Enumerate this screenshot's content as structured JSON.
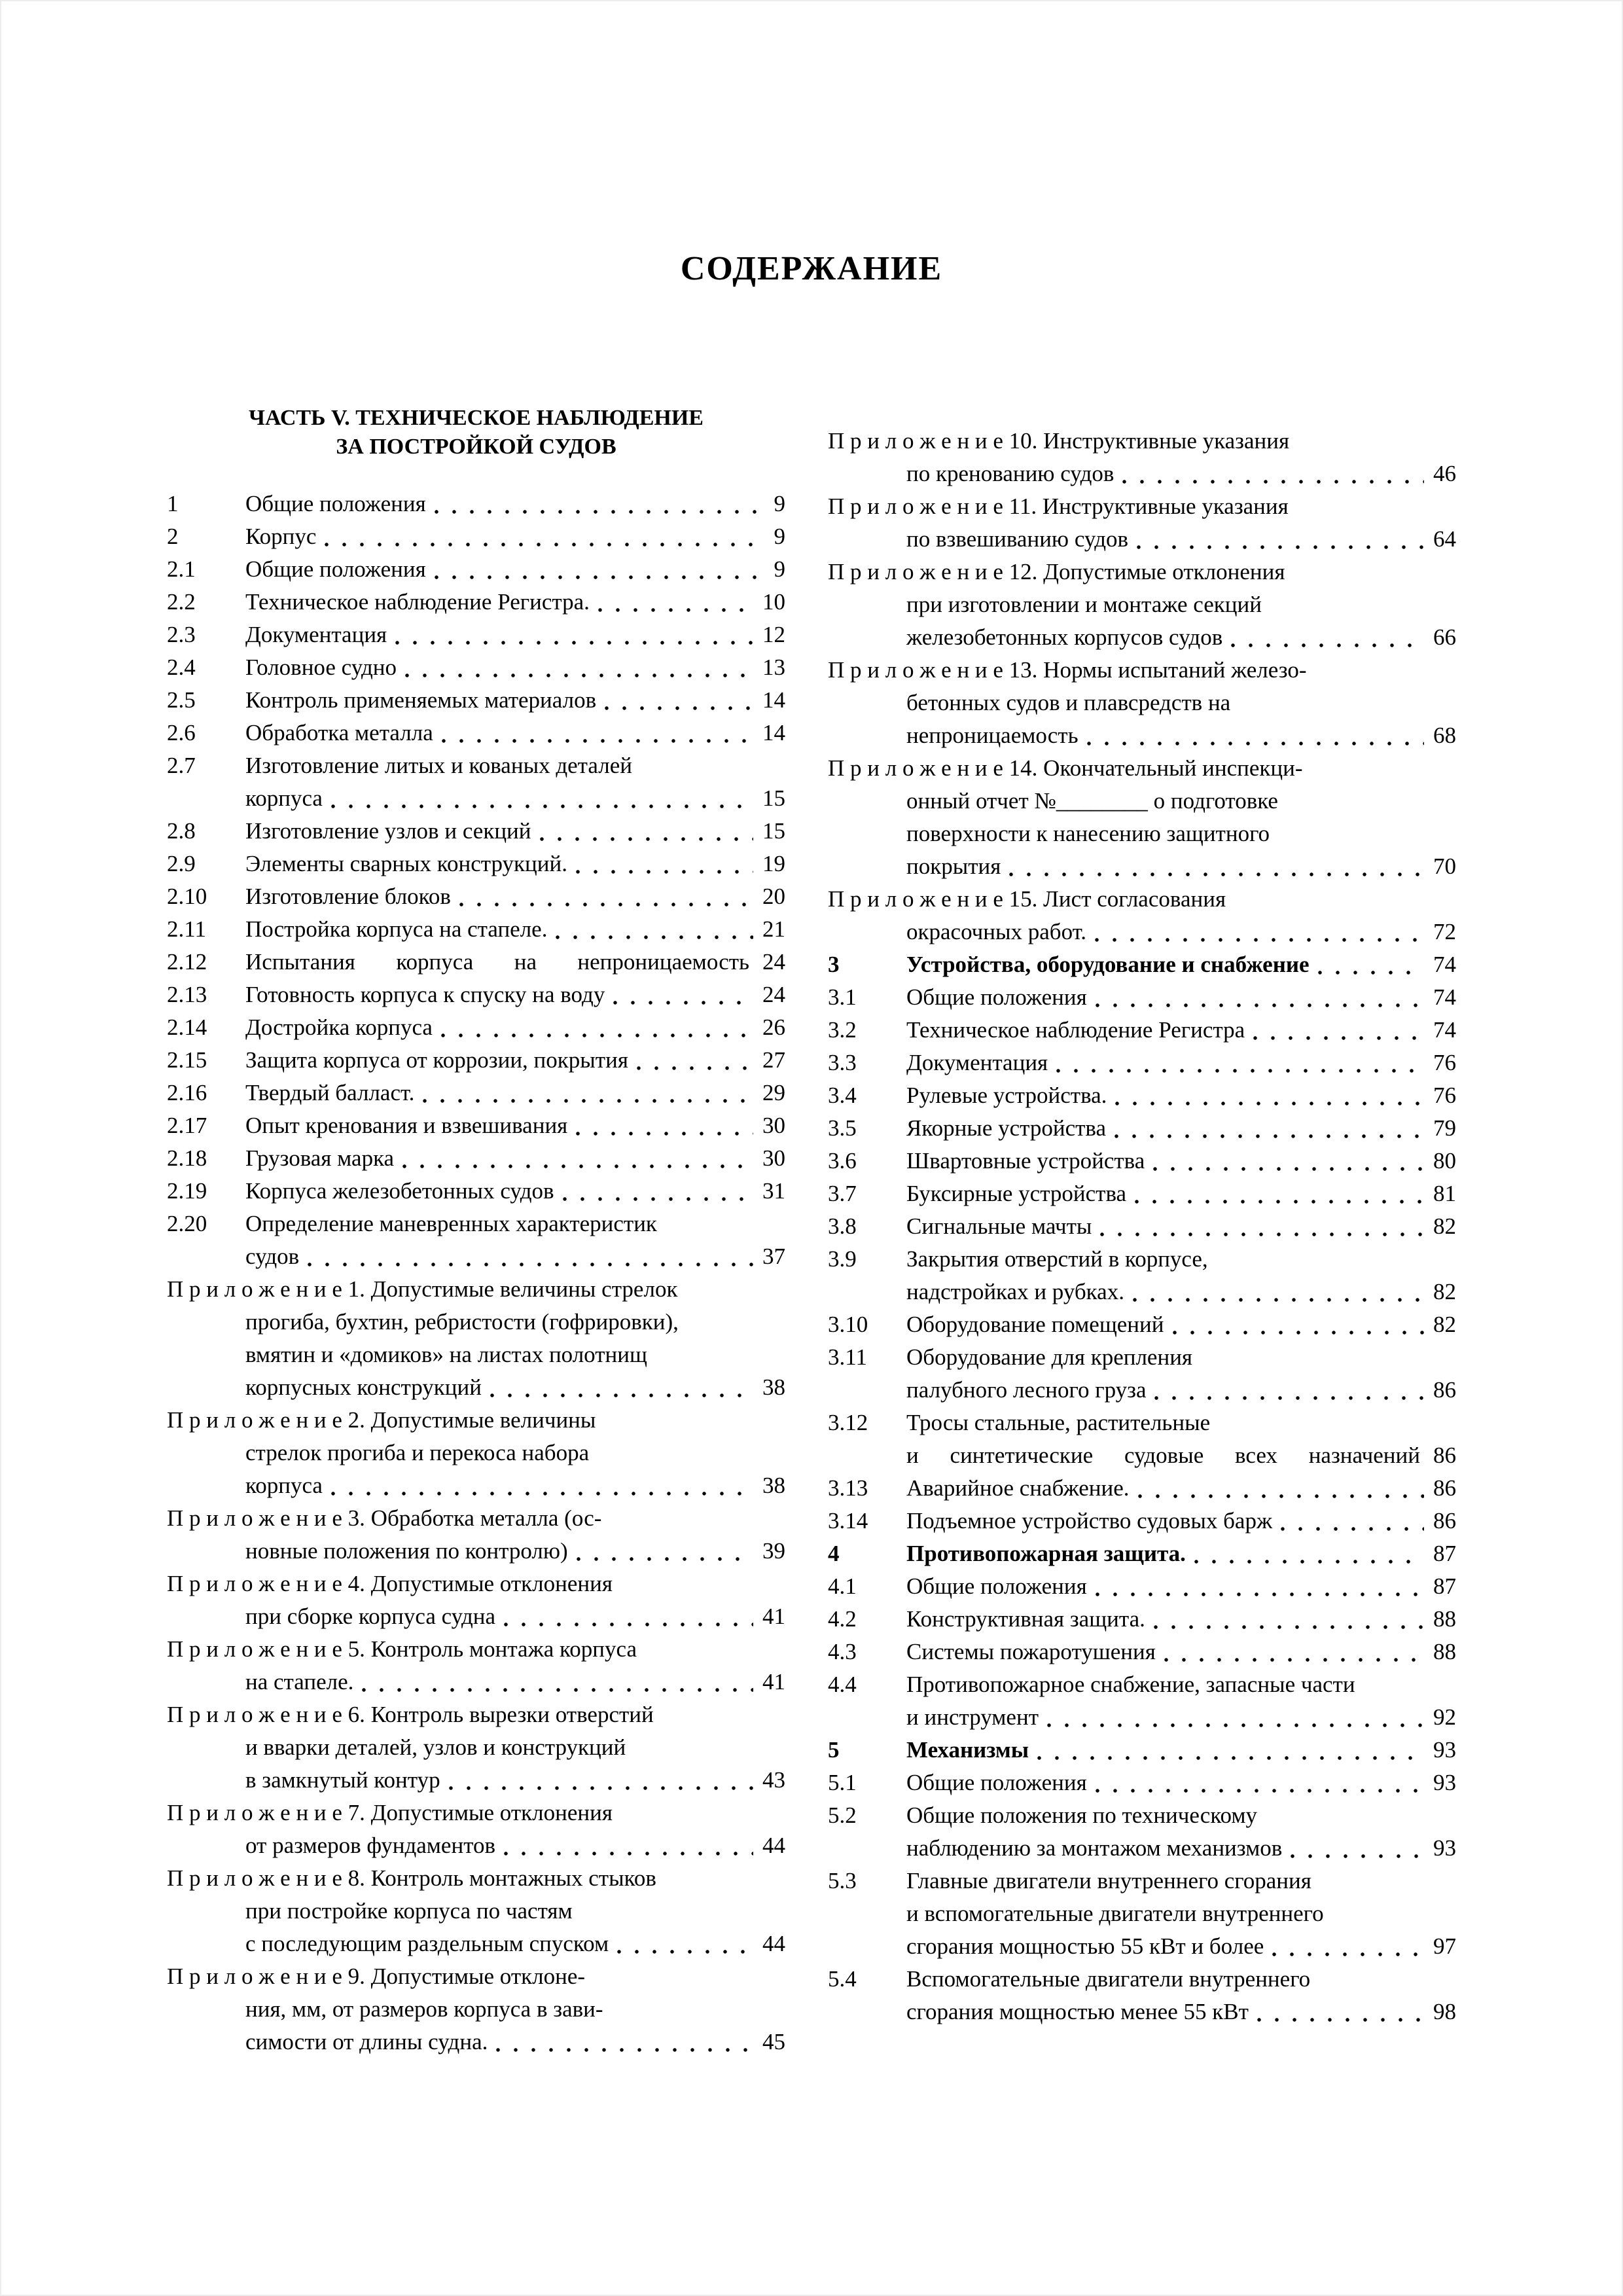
{
  "page_title": "СОДЕРЖАНИЕ",
  "left_column": {
    "header": {
      "line1": "ЧАСТЬ V. ТЕХНИЧЕСКОЕ НАБЛЮДЕНИЕ",
      "line2": "ЗА ПОСТРОЙКОЙ СУДОВ"
    },
    "entries": [
      {
        "num": "1",
        "lines": [
          "Общие положения"
        ],
        "page": "9"
      },
      {
        "num": "2",
        "lines": [
          "Корпус"
        ],
        "page": "9"
      },
      {
        "num": "2.1",
        "lines": [
          "Общие положения"
        ],
        "page": "9"
      },
      {
        "num": "2.2",
        "lines": [
          "Техническое наблюдение Регистра."
        ],
        "page": "10"
      },
      {
        "num": "2.3",
        "lines": [
          "Документация"
        ],
        "page": "12"
      },
      {
        "num": "2.4",
        "lines": [
          "Головное судно"
        ],
        "page": "13"
      },
      {
        "num": "2.5",
        "lines": [
          "Контроль применяемых материалов"
        ],
        "page": "14"
      },
      {
        "num": "2.6",
        "lines": [
          "Обработка металла"
        ],
        "page": "14"
      },
      {
        "num": "2.7",
        "lines": [
          "Изготовление литых и кованых деталей",
          "корпуса"
        ],
        "page": "15"
      },
      {
        "num": "2.8",
        "lines": [
          "Изготовление узлов и секций"
        ],
        "page": "15"
      },
      {
        "num": "2.9",
        "lines": [
          "Элементы сварных конструкций."
        ],
        "page": "19"
      },
      {
        "num": "2.10",
        "lines": [
          "Изготовление блоков"
        ],
        "page": "20"
      },
      {
        "num": "2.11",
        "lines": [
          "Постройка корпуса на стапеле."
        ],
        "page": "21"
      },
      {
        "num": "2.12",
        "lines": [
          "Испытания корпуса на непроницаемость"
        ],
        "page": "24",
        "no_leader": true
      },
      {
        "num": "2.13",
        "lines": [
          "Готовность корпуса к спуску на воду"
        ],
        "page": "24"
      },
      {
        "num": "2.14",
        "lines": [
          "Достройка корпуса"
        ],
        "page": "26"
      },
      {
        "num": "2.15",
        "lines": [
          "Защита корпуса от коррозии, покрытия"
        ],
        "page": "27"
      },
      {
        "num": "2.16",
        "lines": [
          "Твердый балласт."
        ],
        "page": "29"
      },
      {
        "num": "2.17",
        "lines": [
          "Опыт кренования и взвешивания"
        ],
        "page": "30"
      },
      {
        "num": "2.18",
        "lines": [
          "Грузовая марка"
        ],
        "page": "30"
      },
      {
        "num": "2.19",
        "lines": [
          "Корпуса железобетонных судов"
        ],
        "page": "31"
      },
      {
        "num": "2.20",
        "lines": [
          "Определение маневренных характеристик",
          "судов"
        ],
        "page": "37"
      },
      {
        "num": null,
        "lines": [
          "П р и л о ж е н и е  1. Допустимые величины стрелок",
          "прогиба, бухтин, ребристости (гофрировки),",
          "вмятин и «домиков» на листах полотнищ",
          "корпусных конструкций"
        ],
        "page": "38"
      },
      {
        "num": null,
        "lines": [
          "П р и л о ж е н и е  2. Допустимые величины",
          "стрелок прогиба и перекоса набора",
          "корпуса"
        ],
        "page": "38"
      },
      {
        "num": null,
        "lines": [
          "П р и л о ж е н и е  3. Обработка металла (ос-",
          "новные положения по контролю)"
        ],
        "page": "39"
      },
      {
        "num": null,
        "lines": [
          "П р и л о ж е н и е  4. Допустимые отклонения",
          "при сборке корпуса судна"
        ],
        "page": "41"
      },
      {
        "num": null,
        "lines": [
          "П р и л о ж е н и е  5. Контроль монтажа корпуса",
          "на стапеле."
        ],
        "page": "41"
      },
      {
        "num": null,
        "lines": [
          "П р и л о ж е н и е  6. Контроль вырезки отверстий",
          "и вварки деталей, узлов и конструкций",
          "в замкнутый контур"
        ],
        "page": "43"
      },
      {
        "num": null,
        "lines": [
          "П р и л о ж е н и е  7. Допустимые отклонения",
          "от размеров фундаментов"
        ],
        "page": "44"
      },
      {
        "num": null,
        "lines": [
          "П р и л о ж е н и е  8. Контроль монтажных стыков",
          "при постройке корпуса по частям",
          "с последующим раздельным спуском"
        ],
        "page": "44"
      },
      {
        "num": null,
        "lines": [
          "П р и л о ж е н и е  9. Допустимые отклоне-",
          "ния, мм, от размеров корпуса в зави-",
          "симости от длины судна."
        ],
        "page": "45"
      }
    ]
  },
  "right_column": {
    "entries": [
      {
        "num": null,
        "lines": [
          "П р и л о ж е н и е  10. Инструктивные указания",
          "по кренованию судов"
        ],
        "page": "46"
      },
      {
        "num": null,
        "lines": [
          "П р и л о ж е н и е  11. Инструктивные указания",
          "по взвешиванию судов"
        ],
        "page": "64"
      },
      {
        "num": null,
        "lines": [
          "П р и л о ж е н и е  12. Допустимые отклонения",
          "при изготовлении и монтаже секций",
          "железобетонных корпусов судов"
        ],
        "page": "66"
      },
      {
        "num": null,
        "lines": [
          "П р и л о ж е н и е  13. Нормы испытаний железо-",
          "бетонных судов и плавсредств на",
          "непроницаемость"
        ],
        "page": "68"
      },
      {
        "num": null,
        "lines": [
          "П р и л о ж е н и е  14. Окончательный инспекци-",
          "онный отчет №________ о подготовке",
          "поверхности к нанесению защитного",
          "покрытия"
        ],
        "page": "70"
      },
      {
        "num": null,
        "lines": [
          "П р и л о ж е н и е  15. Лист согласования",
          "окрасочных работ."
        ],
        "page": "72"
      },
      {
        "num": "3",
        "bold": true,
        "lines": [
          "Устройства, оборудование и снабжение"
        ],
        "page": "74"
      },
      {
        "num": "3.1",
        "lines": [
          "Общие положения"
        ],
        "page": "74"
      },
      {
        "num": "3.2",
        "lines": [
          "Техническое наблюдение Регистра"
        ],
        "page": "74"
      },
      {
        "num": "3.3",
        "lines": [
          "Документация"
        ],
        "page": "76"
      },
      {
        "num": "3.4",
        "lines": [
          "Рулевые устройства."
        ],
        "page": "76"
      },
      {
        "num": "3.5",
        "lines": [
          "Якорные устройства"
        ],
        "page": "79"
      },
      {
        "num": "3.6",
        "lines": [
          "Швартовные устройства"
        ],
        "page": "80"
      },
      {
        "num": "3.7",
        "lines": [
          "Буксирные устройства"
        ],
        "page": "81"
      },
      {
        "num": "3.8",
        "lines": [
          "Сигнальные мачты"
        ],
        "page": "82"
      },
      {
        "num": "3.9",
        "lines": [
          "Закрытия отверстий в корпусе,",
          "надстройках и рубках."
        ],
        "page": "82"
      },
      {
        "num": "3.10",
        "lines": [
          "Оборудование помещений"
        ],
        "page": "82"
      },
      {
        "num": "3.11",
        "lines": [
          "Оборудование для крепления",
          "палубного лесного груза"
        ],
        "page": "86"
      },
      {
        "num": "3.12",
        "lines": [
          "Тросы стальные, растительные",
          "и синтетические судовые всех назначений"
        ],
        "page": "86",
        "no_leader": true
      },
      {
        "num": "3.13",
        "lines": [
          "Аварийное снабжение."
        ],
        "page": "86"
      },
      {
        "num": "3.14",
        "lines": [
          "Подъемное устройство судовых барж"
        ],
        "page": "86"
      },
      {
        "num": "4",
        "bold": true,
        "lines": [
          "Противопожарная защита."
        ],
        "page": "87"
      },
      {
        "num": "4.1",
        "lines": [
          "Общие положения"
        ],
        "page": "87"
      },
      {
        "num": "4.2",
        "lines": [
          "Конструктивная защита."
        ],
        "page": "88"
      },
      {
        "num": "4.3",
        "lines": [
          "Системы пожаротушения"
        ],
        "page": "88"
      },
      {
        "num": "4.4",
        "lines": [
          "Противопожарное снабжение, запасные части",
          "и инструмент"
        ],
        "page": "92"
      },
      {
        "num": "5",
        "bold": true,
        "lines": [
          "Механизмы"
        ],
        "page": "93"
      },
      {
        "num": "5.1",
        "lines": [
          "Общие положения"
        ],
        "page": "93"
      },
      {
        "num": "5.2",
        "lines": [
          "Общие положения по техническому",
          "наблюдению  за монтажом механизмов"
        ],
        "page": "93"
      },
      {
        "num": "5.3",
        "lines": [
          "Главные двигатели внутреннего сгорания",
          "и вспомогательные двигатели внутреннего",
          "сгорания мощностью 55 кВт и более"
        ],
        "page": "97"
      },
      {
        "num": "5.4",
        "lines": [
          "Вспомогательные двигатели внутреннего",
          "сгорания мощностью менее 55 кВт"
        ],
        "page": "98"
      }
    ]
  }
}
